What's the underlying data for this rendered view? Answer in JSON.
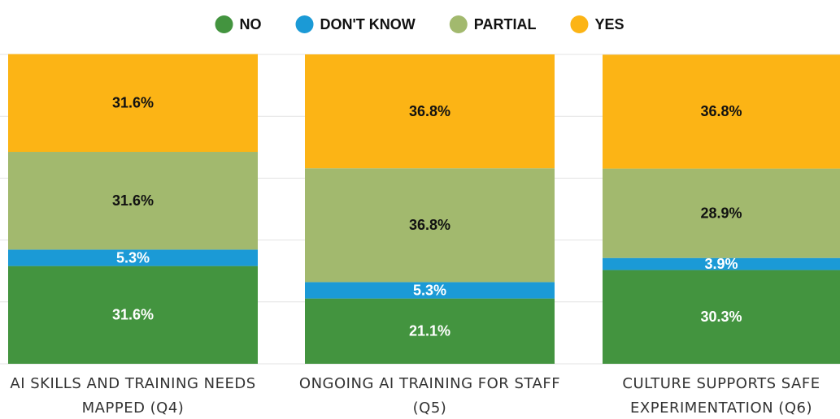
{
  "chart_data": {
    "type": "stacked_bar",
    "categories": [
      "AI SKILLS AND TRAINING NEEDS MAPPED (Q4)",
      "ONGOING AI TRAINING FOR STAFF (Q5)",
      "CULTURE SUPPORTS SAFE EXPERIMENTATION (Q6)"
    ],
    "series": [
      {
        "name": "NO",
        "color": "#43943f",
        "values": [
          31.6,
          21.1,
          30.3
        ],
        "value_labels": [
          "31.6%",
          "21.1%",
          "30.3%"
        ]
      },
      {
        "name": "DON'T KNOW",
        "color": "#1b9ad6",
        "values": [
          5.3,
          5.3,
          3.9
        ],
        "value_labels": [
          "5.3%",
          "5.3%",
          "3.9%"
        ]
      },
      {
        "name": "PARTIAL",
        "color": "#a2b96e",
        "values": [
          31.6,
          36.8,
          28.9
        ],
        "value_labels": [
          "31.6%",
          "36.8%",
          "28.9%"
        ]
      },
      {
        "name": "YES",
        "color": "#fcb415",
        "values": [
          31.6,
          36.8,
          36.8
        ],
        "value_labels": [
          "31.6%",
          "36.8%",
          "36.8%"
        ]
      }
    ],
    "ylim": [
      0,
      100
    ],
    "yticks": [
      0,
      20,
      40,
      60,
      80,
      100
    ],
    "grid": true,
    "legend": "top"
  }
}
